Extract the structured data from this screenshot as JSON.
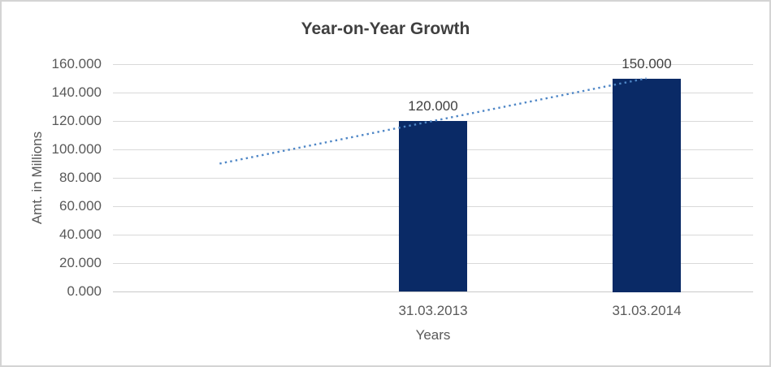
{
  "window": {
    "background": "#ffffff",
    "border_color": "#d4d4d4"
  },
  "chart_data": {
    "type": "bar",
    "title": "Year-on-Year Growth",
    "xlabel": "Years",
    "ylabel": "Amt. in Millions",
    "categories": [
      "31.03.2013",
      "31.03.2014"
    ],
    "values": [
      120,
      150
    ],
    "data_labels": [
      "120.000",
      "150.000"
    ],
    "ylim": [
      0,
      160
    ],
    "y_tick_step": 20,
    "y_tick_labels": [
      "0.000",
      "20.000",
      "40.000",
      "60.000",
      "80.000",
      "100.000",
      "120.000",
      "140.000",
      "160.000"
    ],
    "grid": true,
    "legend": "none",
    "slots": 3,
    "bar_slots": [
      1,
      2
    ],
    "trendline": {
      "style": "dotted",
      "color": "#4e86c6",
      "start": {
        "slot": 0,
        "value": 90
      },
      "end": {
        "slot": 2,
        "value": 150
      },
      "description": "linear trendline extended one period backward"
    },
    "colors": {
      "bar": "#0a2a66",
      "gridline": "#d9d9d9",
      "axis_line": "#c9c9c9",
      "title_text": "#404040",
      "tick_text": "#595959",
      "data_label_text": "#404040"
    }
  }
}
